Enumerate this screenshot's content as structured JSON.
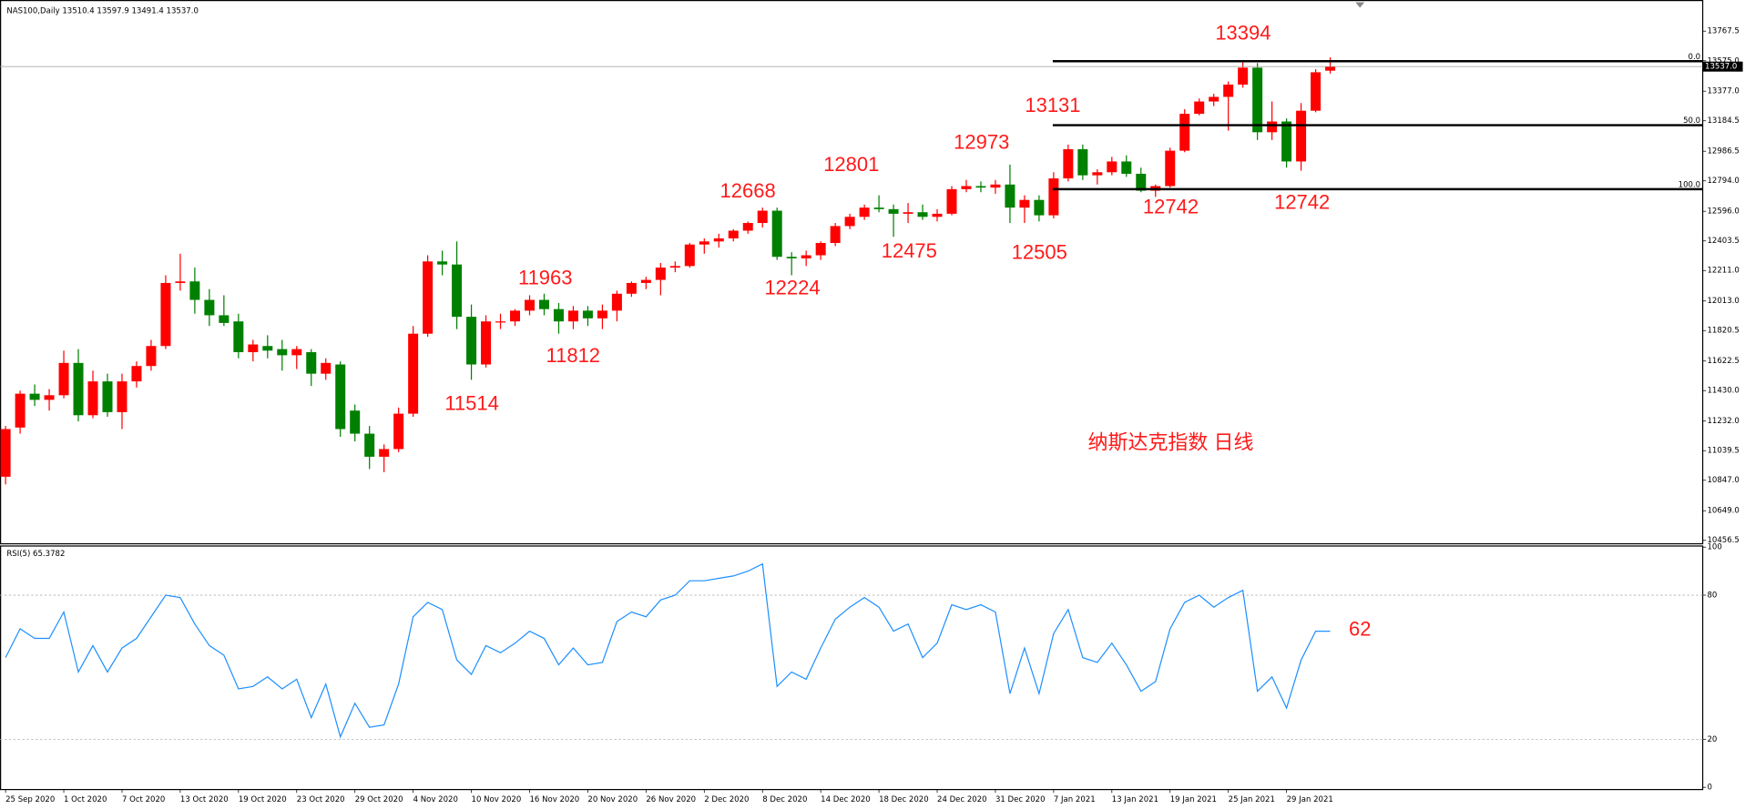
{
  "chart_data": [
    {
      "type": "candlestick",
      "title": "NAS100,Daily  13510.4 13597.9 13491.4 13537.0",
      "categories": [
        "25 Sep 2020",
        null,
        null,
        null,
        "1 Oct 2020",
        null,
        null,
        null,
        "7 Oct 2020",
        null,
        null,
        null,
        "13 Oct 2020",
        null,
        null,
        null,
        "19 Oct 2020",
        null,
        null,
        null,
        "23 Oct 2020",
        null,
        null,
        null,
        "29 Oct 2020",
        null,
        null,
        null,
        "4 Nov 2020",
        null,
        null,
        null,
        "10 Nov 2020",
        null,
        null,
        null,
        "16 Nov 2020",
        null,
        null,
        null,
        "20 Nov 2020",
        null,
        null,
        null,
        "26 Nov 2020",
        null,
        null,
        null,
        "2 Dec 2020",
        null,
        null,
        null,
        "8 Dec 2020",
        null,
        null,
        null,
        "14 Dec 2020",
        null,
        null,
        null,
        "18 Dec 2020",
        null,
        null,
        null,
        "24 Dec 2020",
        null,
        null,
        null,
        "31 Dec 2020",
        null,
        null,
        null,
        "7 Jan 2021",
        null,
        null,
        null,
        "13 Jan 2021",
        null,
        null,
        null,
        "19 Jan 2021",
        null,
        null,
        null,
        "25 Jan 2021",
        null,
        null,
        null,
        "29 Jan 2021",
        null,
        null,
        null
      ],
      "open": [
        10870,
        11190,
        11410,
        11370,
        11400,
        11610,
        11270,
        11490,
        11290,
        11490,
        11590,
        11720,
        12130,
        12140,
        12020,
        11920,
        11880,
        11680,
        11720,
        11700,
        11660,
        11680,
        11540,
        11600,
        11300,
        11150,
        11000,
        11050,
        11280,
        11800,
        12270,
        12250,
        11910,
        11600,
        11880,
        11880,
        11950,
        12020,
        11960,
        11880,
        11950,
        11900,
        11950,
        12060,
        12130,
        12150,
        12230,
        12240,
        12380,
        12400,
        12420,
        12470,
        12520,
        12600,
        12300,
        12290,
        12310,
        12390,
        12500,
        12560,
        12620,
        12610,
        12580,
        12590,
        12560,
        12580,
        12740,
        12760,
        12750,
        12770,
        12620,
        12670,
        12570,
        12810,
        13000,
        12830,
        12850,
        12920,
        12840,
        12730,
        12760,
        12990,
        13230,
        13310,
        13340,
        13420,
        13530,
        13110,
        13180,
        12920,
        13250,
        13510.4
      ],
      "high": [
        11200,
        11430,
        11470,
        11440,
        11690,
        11700,
        11560,
        11540,
        11540,
        11620,
        11760,
        12180,
        12320,
        12230,
        12090,
        12050,
        11930,
        11760,
        11790,
        11760,
        11720,
        11700,
        11640,
        11620,
        11340,
        11200,
        11080,
        11320,
        11850,
        12310,
        12340,
        12400,
        11990,
        11920,
        11930,
        11960,
        12050,
        12060,
        12000,
        11980,
        11980,
        11990,
        12080,
        12140,
        12170,
        12260,
        12270,
        12390,
        12420,
        12450,
        12480,
        12530,
        12620,
        12620,
        12330,
        12340,
        12400,
        12520,
        12580,
        12640,
        12700,
        12640,
        12650,
        12640,
        12610,
        12760,
        12800,
        12790,
        12800,
        12900,
        12700,
        12700,
        12850,
        13030,
        13030,
        12870,
        12950,
        12960,
        12880,
        12770,
        13010,
        13260,
        13330,
        13360,
        13440,
        13580,
        13560,
        13310,
        13200,
        13300,
        13520,
        13597.9
      ],
      "low": [
        10820,
        11150,
        11330,
        11300,
        11380,
        11230,
        11250,
        11260,
        11180,
        11450,
        11560,
        11700,
        12080,
        11930,
        11850,
        11850,
        11640,
        11620,
        11640,
        11560,
        11570,
        11460,
        11500,
        11130,
        11100,
        10920,
        10900,
        11030,
        11260,
        11780,
        12180,
        11830,
        11500,
        11580,
        11830,
        11850,
        11920,
        11920,
        11800,
        11830,
        11850,
        11830,
        11880,
        12040,
        12090,
        12050,
        12200,
        12230,
        12320,
        12360,
        12400,
        12450,
        12490,
        12280,
        12180,
        12240,
        12280,
        12370,
        12480,
        12540,
        12590,
        12430,
        12520,
        12540,
        12530,
        12570,
        12720,
        12720,
        12710,
        12520,
        12520,
        12530,
        12550,
        12790,
        12800,
        12770,
        12830,
        12820,
        12720,
        12690,
        12750,
        12980,
        13220,
        13280,
        13120,
        13400,
        13060,
        13060,
        12880,
        12860,
        13240,
        13491.4
      ],
      "close": [
        11180,
        11410,
        11370,
        11400,
        11610,
        11270,
        11490,
        11290,
        11490,
        11590,
        11720,
        12130,
        12140,
        12020,
        11920,
        11870,
        11680,
        11730,
        11690,
        11660,
        11700,
        11540,
        11610,
        11180,
        11150,
        11000,
        11050,
        11280,
        11800,
        12270,
        12250,
        11910,
        11600,
        11880,
        11880,
        11950,
        12020,
        11960,
        11880,
        11950,
        11900,
        11950,
        12060,
        12130,
        12150,
        12230,
        12240,
        12380,
        12400,
        12420,
        12470,
        12520,
        12600,
        12300,
        12290,
        12310,
        12390,
        12500,
        12560,
        12620,
        12610,
        12580,
        12590,
        12560,
        12580,
        12740,
        12760,
        12750,
        12770,
        12620,
        12670,
        12570,
        12810,
        13000,
        12830,
        12850,
        12920,
        12840,
        12730,
        12760,
        12990,
        13230,
        13310,
        13340,
        13420,
        13530,
        13110,
        13180,
        12920,
        13250,
        13500,
        13537
      ],
      "up_color": "#ff0000",
      "down_color": "#008000",
      "ylim": [
        10434,
        13970
      ],
      "yticks": [
        13767.5,
        {
          "value": 13575,
          "label": "13575.0"
        },
        {
          "value": 13377,
          "label": "13377.0"
        },
        13184.5,
        12986.5,
        {
          "value": 12794,
          "label": "12794.0"
        },
        {
          "value": 12596,
          "label": "12596.0"
        },
        12403.5,
        {
          "value": 12211,
          "label": "12211.0"
        },
        {
          "value": 12013,
          "label": "12013.0"
        },
        11820.5,
        11622.5,
        {
          "value": 11430,
          "label": "11430.0"
        },
        {
          "value": 11232,
          "label": "11232.0"
        },
        11039.5,
        {
          "value": 10847,
          "label": "10847.0"
        },
        {
          "value": 10649,
          "label": "10649.0"
        },
        10456.5
      ],
      "last_price": {
        "value": 13537,
        "label": "13537.0"
      },
      "fibonacci": {
        "from": 13572,
        "to": 12740,
        "levels": [
          0,
          50,
          100
        ],
        "labels": [
          "0.0",
          "50.0",
          "100.0"
        ]
      },
      "annotations": [
        "13394",
        "13131",
        "12973",
        "12801",
        "12668",
        "11963",
        "12742",
        "12742",
        "12475",
        "12505",
        "12224",
        "11812",
        "11514",
        "纳斯达克指数 日线"
      ]
    },
    {
      "type": "line",
      "title": "RSI(5) 65.3782",
      "color": "#1e90ff",
      "values": [
        54,
        66,
        62,
        62,
        73,
        48,
        59,
        48,
        58,
        62,
        71,
        80,
        79,
        68,
        59,
        55,
        41,
        42,
        46,
        41,
        45,
        29,
        43,
        21,
        35,
        25,
        26,
        43,
        71,
        77,
        74,
        53,
        47,
        59,
        56,
        60,
        65,
        62,
        51,
        58,
        51,
        52,
        69,
        73,
        71,
        78,
        80,
        86,
        86,
        87,
        88,
        90,
        93,
        42,
        48,
        45,
        58,
        70,
        75,
        79,
        75,
        65,
        68,
        54,
        60,
        76,
        74,
        76,
        73,
        39,
        58,
        39,
        64,
        74,
        54,
        52,
        60,
        51,
        40,
        44,
        66,
        77,
        80,
        75,
        79,
        82,
        40,
        46,
        33,
        53,
        65,
        65
      ],
      "ylim": [
        0,
        100
      ],
      "yticks": [
        100,
        80,
        20,
        0
      ],
      "levels": [
        80,
        20
      ],
      "annotations": [
        "62"
      ]
    }
  ]
}
